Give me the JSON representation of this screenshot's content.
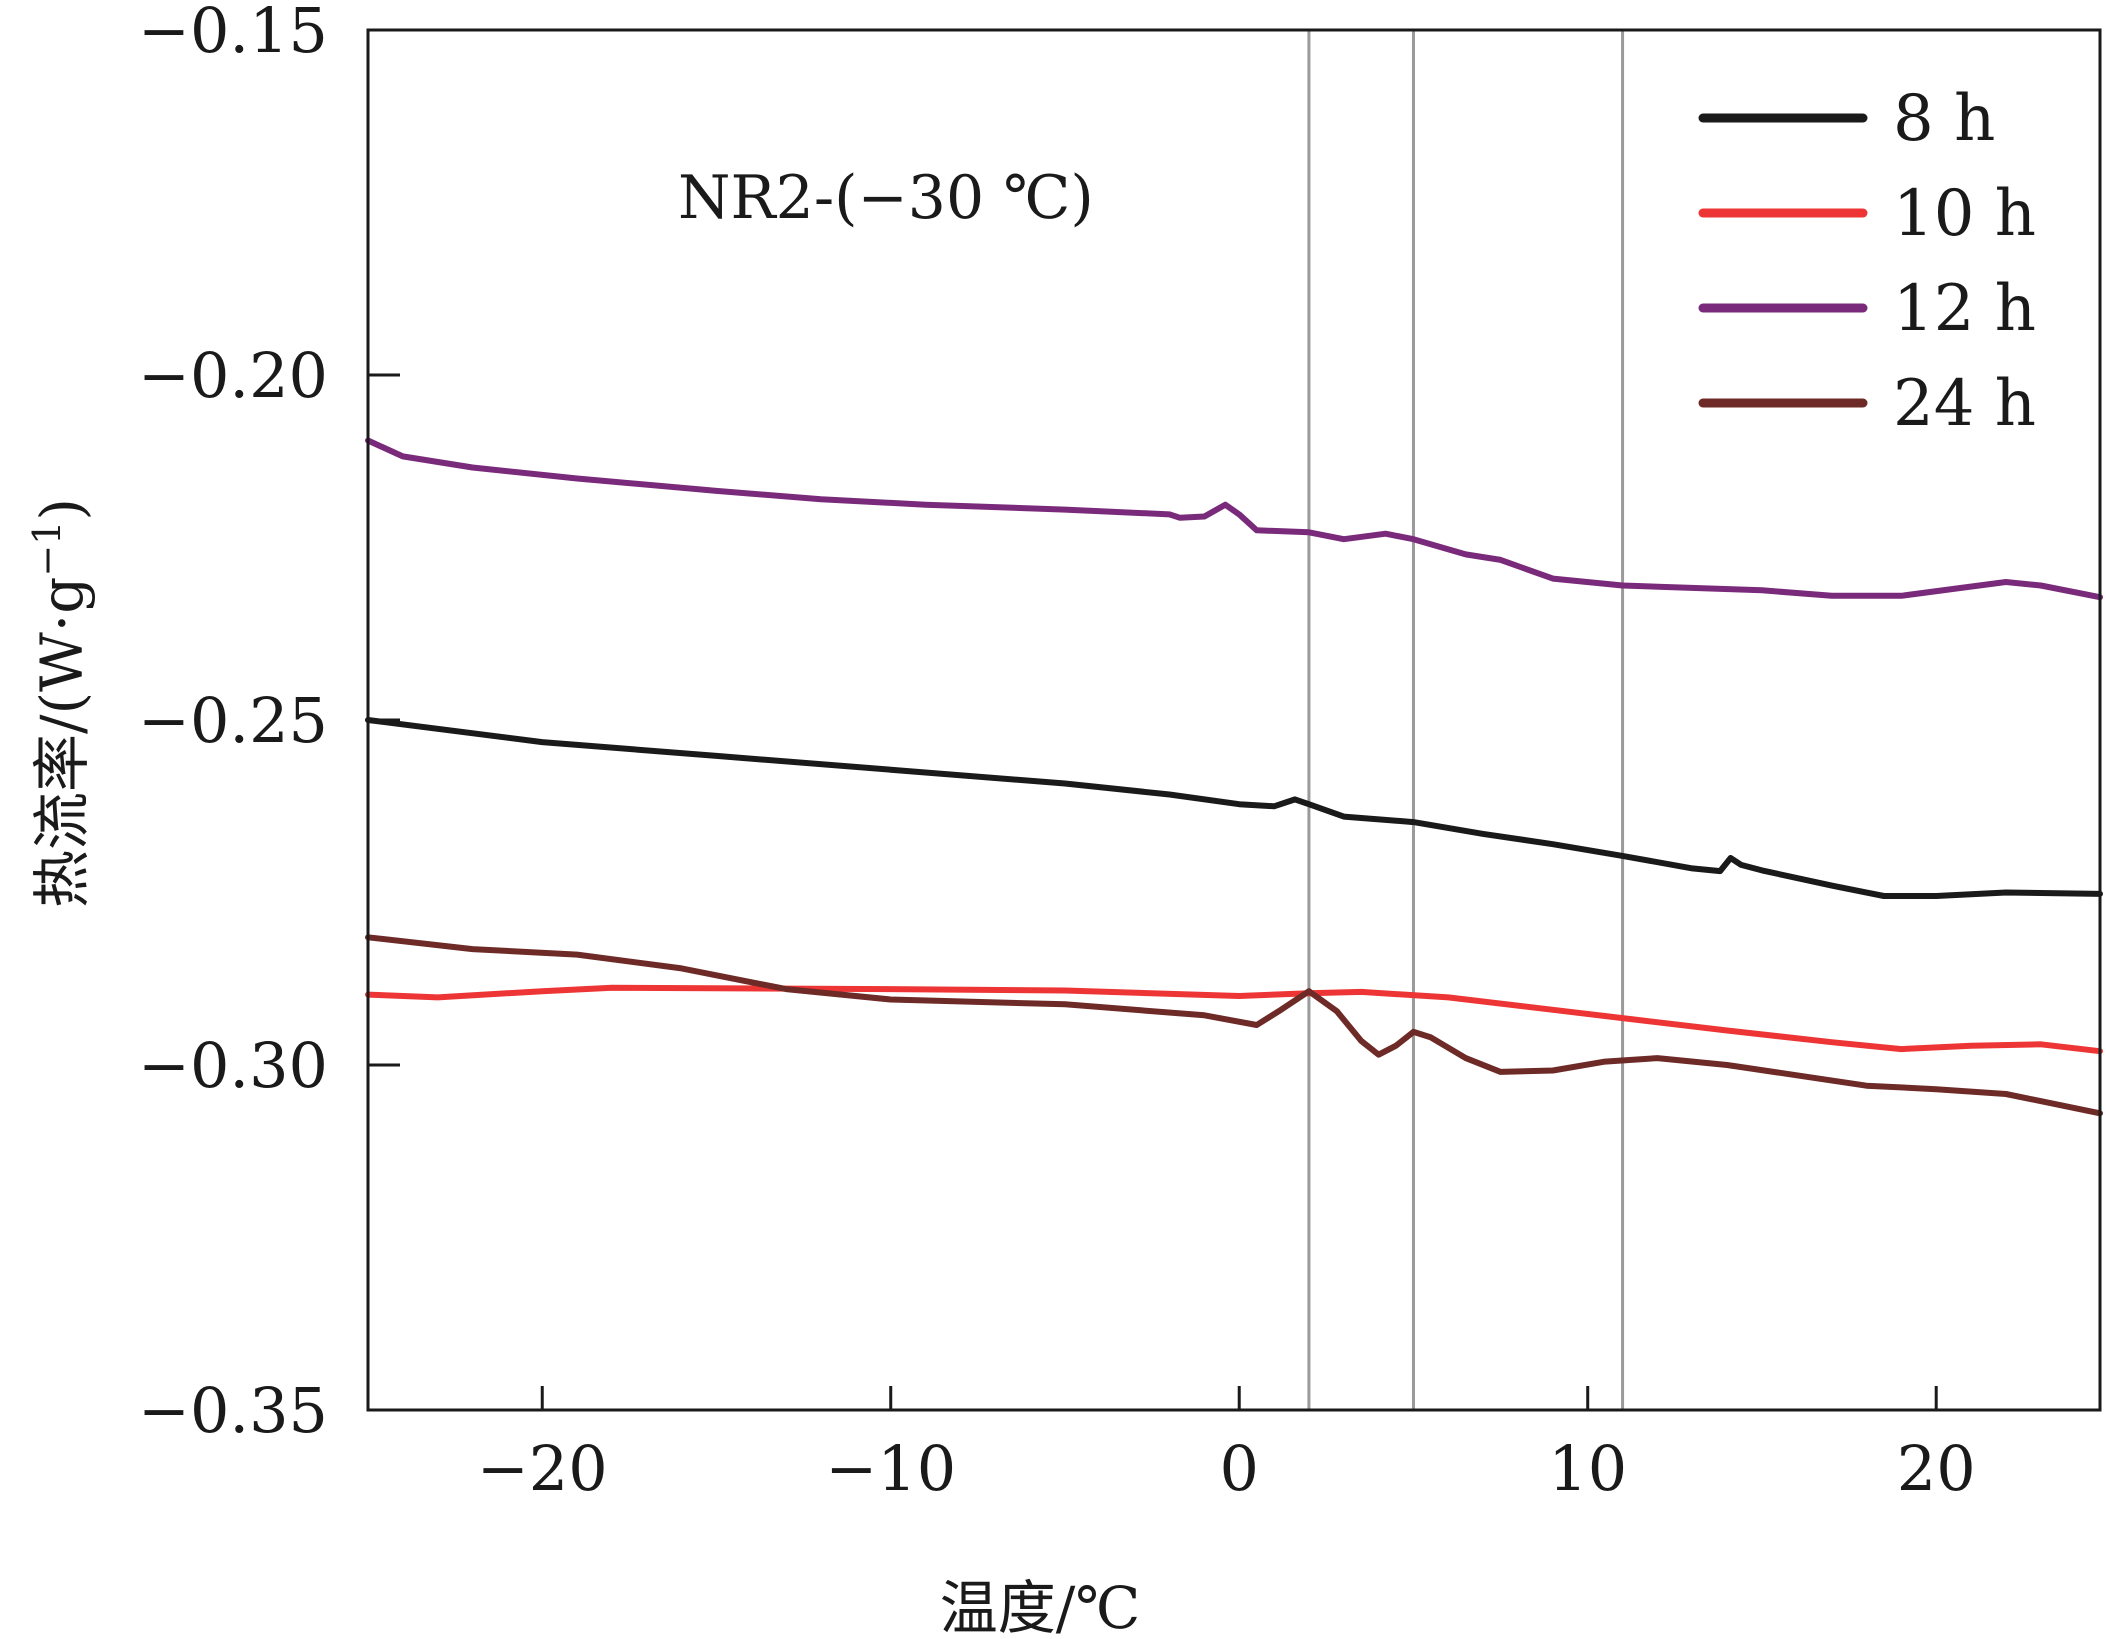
{
  "chart_data": {
    "type": "line",
    "title": "",
    "annotation": "NR2-(−30 ℃)",
    "xlabel": "温度/℃",
    "ylabel": "热流率/(W·g",
    "ylabel_sup": "−1",
    "ylabel_tail": ")",
    "xlim": [
      -25,
      24.7
    ],
    "ylim": [
      -0.35,
      -0.15
    ],
    "xticks": [
      -20,
      -10,
      0,
      10,
      20
    ],
    "xtick_labels": [
      "−20",
      "−10",
      "0",
      "10",
      "20"
    ],
    "yticks": [
      -0.35,
      -0.3,
      -0.25,
      -0.2,
      -0.15
    ],
    "ytick_labels": [
      "−0.35",
      "−0.30",
      "−0.25",
      "−0.20",
      "−0.15"
    ],
    "grid": false,
    "reference_lines_x": [
      2,
      5,
      11
    ],
    "reference_line_color": "#9a9a9a",
    "legend_position": "top-right",
    "series": [
      {
        "name": "8 h",
        "color": "#1a1a1a",
        "points": [
          [
            -25,
            -0.25
          ],
          [
            -20,
            -0.2532
          ],
          [
            -15,
            -0.2552
          ],
          [
            -10,
            -0.2572
          ],
          [
            -5,
            -0.2592
          ],
          [
            -2,
            -0.2608
          ],
          [
            0,
            -0.2622
          ],
          [
            1,
            -0.2625
          ],
          [
            1.6,
            -0.2615
          ],
          [
            2,
            -0.2622
          ],
          [
            3,
            -0.264
          ],
          [
            5,
            -0.2648
          ],
          [
            7,
            -0.2665
          ],
          [
            9,
            -0.268
          ],
          [
            11,
            -0.2697
          ],
          [
            13,
            -0.2715
          ],
          [
            13.8,
            -0.2719
          ],
          [
            14.1,
            -0.27
          ],
          [
            14.4,
            -0.271
          ],
          [
            15,
            -0.2718
          ],
          [
            17,
            -0.274
          ],
          [
            18.5,
            -0.2755
          ],
          [
            20,
            -0.2755
          ],
          [
            22,
            -0.275
          ],
          [
            24.7,
            -0.2752
          ]
        ]
      },
      {
        "name": "10 h",
        "color": "#ee3535",
        "points": [
          [
            -25,
            -0.2898
          ],
          [
            -23,
            -0.2902
          ],
          [
            -20,
            -0.2893
          ],
          [
            -18,
            -0.2888
          ],
          [
            -10,
            -0.289
          ],
          [
            -5,
            -0.2892
          ],
          [
            0,
            -0.29
          ],
          [
            2,
            -0.2896
          ],
          [
            3.5,
            -0.2894
          ],
          [
            6,
            -0.2902
          ],
          [
            9,
            -0.292
          ],
          [
            11,
            -0.2932
          ],
          [
            14,
            -0.295
          ],
          [
            17,
            -0.2967
          ],
          [
            19,
            -0.2977
          ],
          [
            21,
            -0.2972
          ],
          [
            23,
            -0.297
          ],
          [
            24.7,
            -0.298
          ]
        ]
      },
      {
        "name": "12 h",
        "color": "#7a2a7a",
        "points": [
          [
            -25,
            -0.2095
          ],
          [
            -24,
            -0.2118
          ],
          [
            -22,
            -0.2134
          ],
          [
            -19,
            -0.215
          ],
          [
            -15,
            -0.2168
          ],
          [
            -12,
            -0.218
          ],
          [
            -9,
            -0.2188
          ],
          [
            -5,
            -0.2195
          ],
          [
            -2,
            -0.2202
          ],
          [
            -1.7,
            -0.2207
          ],
          [
            -1,
            -0.2205
          ],
          [
            -0.4,
            -0.2188
          ],
          [
            0,
            -0.2202
          ],
          [
            0.5,
            -0.2225
          ],
          [
            2,
            -0.2228
          ],
          [
            3,
            -0.2238
          ],
          [
            4.2,
            -0.223
          ],
          [
            5,
            -0.2238
          ],
          [
            6.5,
            -0.226
          ],
          [
            7.5,
            -0.2268
          ],
          [
            9,
            -0.2295
          ],
          [
            11,
            -0.2305
          ],
          [
            15,
            -0.2312
          ],
          [
            17,
            -0.232
          ],
          [
            19,
            -0.232
          ],
          [
            20.5,
            -0.231
          ],
          [
            22,
            -0.23
          ],
          [
            23,
            -0.2305
          ],
          [
            24.7,
            -0.2322
          ]
        ]
      },
      {
        "name": "24 h",
        "color": "#6e2a26",
        "points": [
          [
            -25,
            -0.2815
          ],
          [
            -22,
            -0.2832
          ],
          [
            -19,
            -0.284
          ],
          [
            -16,
            -0.286
          ],
          [
            -13,
            -0.289
          ],
          [
            -10,
            -0.2905
          ],
          [
            -5,
            -0.2912
          ],
          [
            -1,
            -0.2928
          ],
          [
            0.5,
            -0.2942
          ],
          [
            1.2,
            -0.292
          ],
          [
            2,
            -0.2893
          ],
          [
            2.8,
            -0.2922
          ],
          [
            3.5,
            -0.2965
          ],
          [
            4,
            -0.2985
          ],
          [
            4.5,
            -0.2972
          ],
          [
            5,
            -0.2952
          ],
          [
            5.5,
            -0.296
          ],
          [
            6.5,
            -0.299
          ],
          [
            7.5,
            -0.301
          ],
          [
            9,
            -0.3008
          ],
          [
            10.5,
            -0.2995
          ],
          [
            12,
            -0.299
          ],
          [
            14,
            -0.3
          ],
          [
            16,
            -0.3015
          ],
          [
            18,
            -0.303
          ],
          [
            20,
            -0.3035
          ],
          [
            22,
            -0.3042
          ],
          [
            24.7,
            -0.307
          ]
        ]
      }
    ]
  }
}
